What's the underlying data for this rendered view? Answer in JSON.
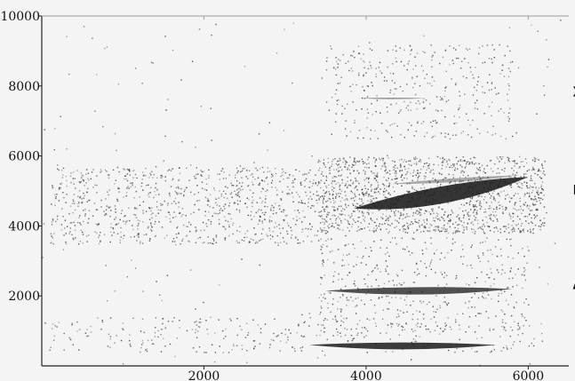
{
  "chart_data": {
    "type": "scatter",
    "title": "",
    "xlabel": "",
    "ylabel": "",
    "xlim": [
      0,
      6500
    ],
    "ylim": [
      0,
      10000
    ],
    "xticks": [
      {
        "value": 2000,
        "label": "2000"
      },
      {
        "value": 4000,
        "label": "4000"
      },
      {
        "value": 6000,
        "label": "6000"
      }
    ],
    "yticks": [
      {
        "value": 2000,
        "label": "2000"
      },
      {
        "value": 4000,
        "label": "4000"
      },
      {
        "value": 6000,
        "label": "6000"
      },
      {
        "value": 8000,
        "label": "8000"
      },
      {
        "value": 10000,
        "label": "10000"
      }
    ],
    "grid": false,
    "legend": "none",
    "colors": {
      "background": "#f4f4f4",
      "points": "#333333",
      "band": "#1a1a1a",
      "axis": "#222222"
    },
    "annotations": [
      {
        "text": "Xe",
        "x": 6550,
        "y": 7700
      },
      {
        "text": "Kr",
        "x": 6550,
        "y": 4900
      },
      {
        "text": "Ar",
        "x": 6550,
        "y": 2200
      }
    ],
    "bands": [
      {
        "label": "Xe",
        "x_start": 3900,
        "x_end": 4750,
        "y_start": 7650,
        "y_end": 7650,
        "thickness": 60,
        "opacity": 0.45
      },
      {
        "label": "Kr",
        "x_start": 3850,
        "x_end": 6000,
        "y_start": 4500,
        "y_end": 5400,
        "thickness": 700,
        "opacity": 0.88
      },
      {
        "label": "Kr",
        "x_start": 4300,
        "x_end": 5900,
        "y_start": 5200,
        "y_end": 5450,
        "thickness": 150,
        "opacity": 0.35
      },
      {
        "label": "Ar",
        "x_start": 3500,
        "x_end": 5800,
        "y_start": 2150,
        "y_end": 2200,
        "thickness": 300,
        "opacity": 0.75
      },
      {
        "label": "",
        "x_start": 3300,
        "x_end": 5600,
        "y_start": 600,
        "y_end": 600,
        "thickness": 280,
        "opacity": 0.85
      }
    ],
    "point_regions": [
      {
        "x": [
          100,
          3400
        ],
        "y": [
          3500,
          5700
        ],
        "count": 900
      },
      {
        "x": [
          3400,
          6200
        ],
        "y": [
          3800,
          6000
        ],
        "count": 1500
      },
      {
        "x": [
          3500,
          5800
        ],
        "y": [
          6500,
          9200
        ],
        "count": 350
      },
      {
        "x": [
          3400,
          6000
        ],
        "y": [
          1000,
          3700
        ],
        "count": 450
      },
      {
        "x": [
          100,
          6200
        ],
        "y": [
          400,
          1400
        ],
        "count": 300
      },
      {
        "x": [
          0,
          6400
        ],
        "y": [
          0,
          10000
        ],
        "count": 200
      }
    ]
  }
}
